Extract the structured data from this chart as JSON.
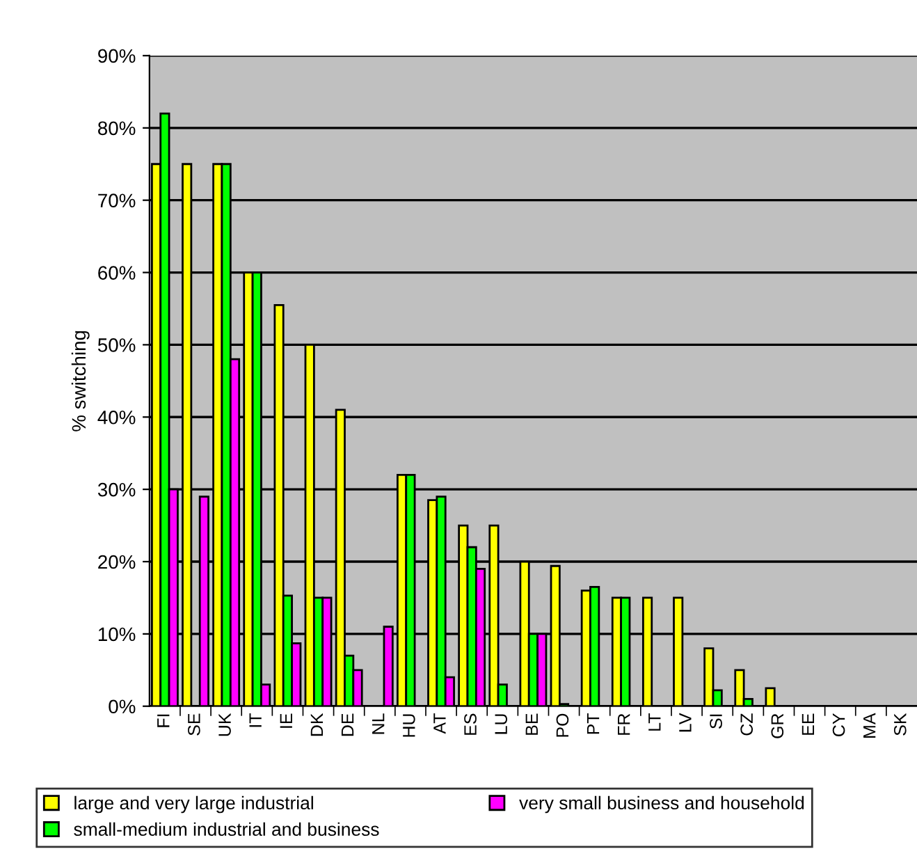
{
  "chart_data": {
    "type": "bar",
    "ylabel": "% switching",
    "categories": [
      "FI",
      "SE",
      "UK",
      "IT",
      "IE",
      "DK",
      "DE",
      "NL",
      "HU",
      "AT",
      "ES",
      "LU",
      "BE",
      "PO",
      "PT",
      "FR",
      "LT",
      "LV",
      "SI",
      "CZ",
      "GR",
      "EE",
      "CY",
      "MA",
      "SK"
    ],
    "series": [
      {
        "name": "large and very large industrial",
        "color": "#ffff00",
        "values": [
          75,
          75,
          75,
          60,
          55.5,
          50,
          41,
          null,
          32,
          28.5,
          25,
          25,
          20,
          19.4,
          16,
          15,
          15,
          15,
          8,
          5,
          2.5,
          null,
          null,
          null,
          null
        ]
      },
      {
        "name": "small-medium industrial and business",
        "color": "#00ff00",
        "values": [
          82,
          null,
          75,
          60,
          15.3,
          15,
          7,
          null,
          32,
          29,
          22,
          3,
          10,
          0.3,
          16.5,
          15,
          null,
          null,
          2.2,
          1,
          null,
          null,
          null,
          null,
          null
        ]
      },
      {
        "name": "very small business and household",
        "color": "#ff00ff",
        "values": [
          30,
          29,
          48,
          3,
          8.7,
          15,
          5,
          11,
          null,
          4,
          19,
          null,
          10,
          null,
          null,
          null,
          null,
          null,
          null,
          null,
          null,
          null,
          null,
          null,
          null
        ]
      }
    ],
    "ylim": [
      0,
      90
    ],
    "yticks": [
      {
        "value": 0,
        "label": "0%"
      },
      {
        "value": 10,
        "label": "10%"
      },
      {
        "value": 20,
        "label": "20%"
      },
      {
        "value": 30,
        "label": "30%"
      },
      {
        "value": 40,
        "label": "40%"
      },
      {
        "value": 50,
        "label": "50%"
      },
      {
        "value": 60,
        "label": "60%"
      },
      {
        "value": 70,
        "label": "70%"
      },
      {
        "value": 80,
        "label": "80%"
      },
      {
        "value": 90,
        "label": "90%"
      }
    ],
    "grid": "y",
    "legend": "bottom"
  }
}
